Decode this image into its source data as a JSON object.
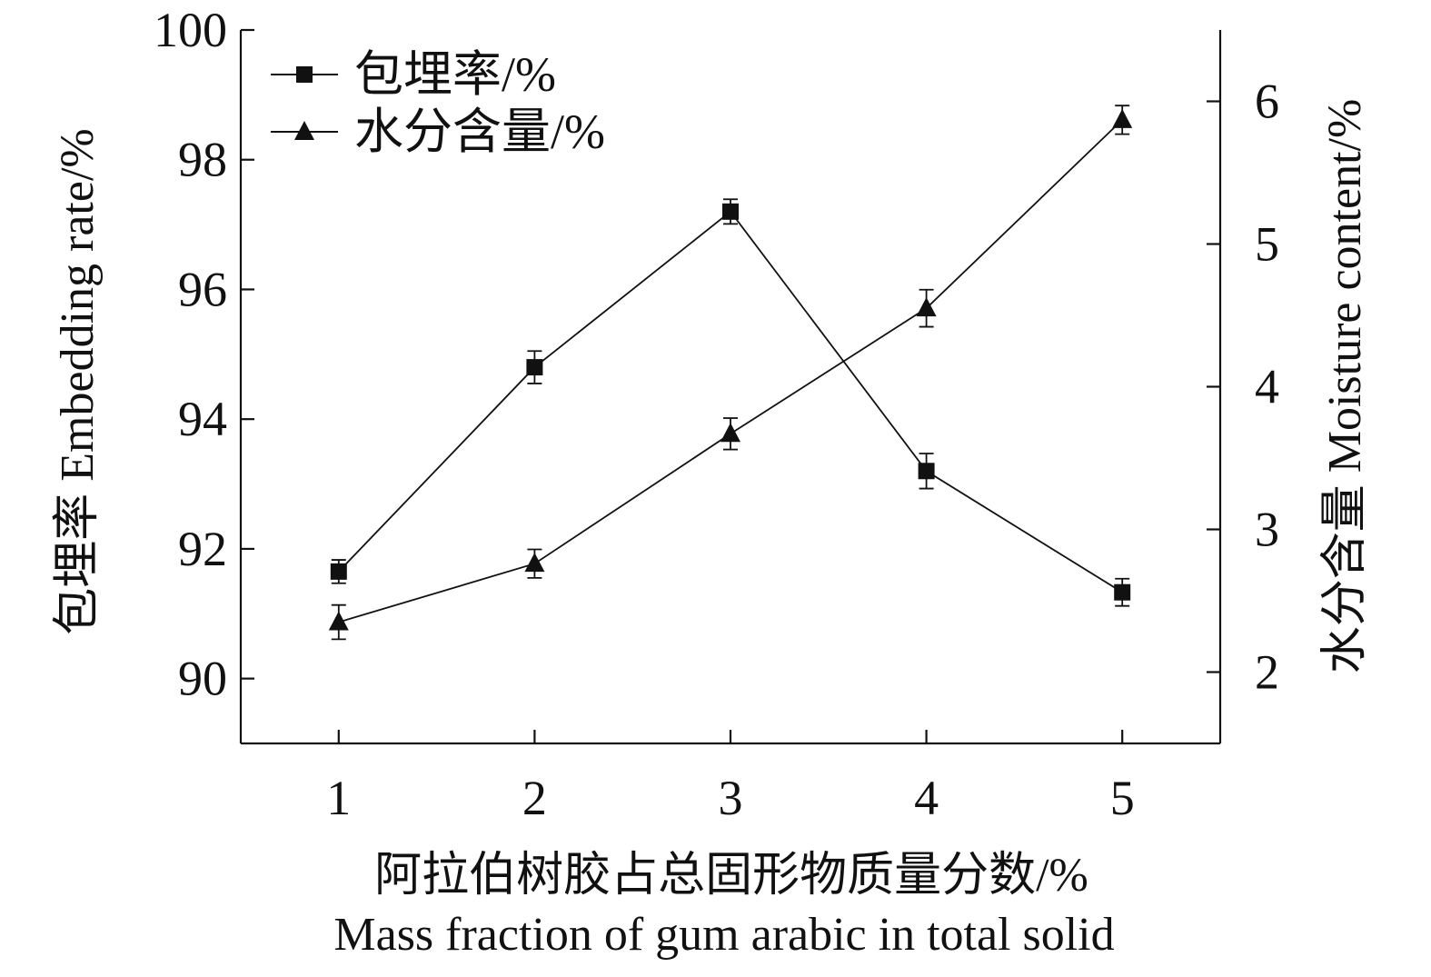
{
  "chart_data": {
    "type": "line",
    "x": [
      1,
      2,
      3,
      4,
      5
    ],
    "x_ticks": [
      1,
      2,
      3,
      4,
      5
    ],
    "xlim": [
      0.5,
      5.5
    ],
    "xlabel": "阿拉伯树胶占总固形物质量分数/%",
    "xlabel_en": "Mass fraction of gum arabic in total solid",
    "ylabel_left": "包埋率 Embedding rate/%",
    "ylim_left": [
      89,
      100
    ],
    "yticks_left": [
      90,
      92,
      94,
      96,
      98,
      100
    ],
    "ylabel_right": "水分含量 Moisture content/%",
    "ylim_right": [
      1.5,
      6.5
    ],
    "yticks_right": [
      2,
      3,
      4,
      5,
      6
    ],
    "grid": false,
    "legend_position": "top-left",
    "axis_color": "#111111",
    "series": [
      {
        "name": "包埋率/%",
        "axis": "left",
        "marker": "square",
        "color": "#111111",
        "values": [
          91.65,
          94.8,
          97.2,
          93.2,
          91.33
        ],
        "errors": [
          0.18,
          0.25,
          0.19,
          0.27,
          0.21
        ]
      },
      {
        "name": "水分含量/%",
        "axis": "right",
        "marker": "triangle",
        "color": "#111111",
        "values": [
          2.35,
          2.76,
          3.67,
          4.55,
          5.87
        ],
        "errors": [
          0.12,
          0.1,
          0.11,
          0.13,
          0.1
        ]
      }
    ]
  }
}
